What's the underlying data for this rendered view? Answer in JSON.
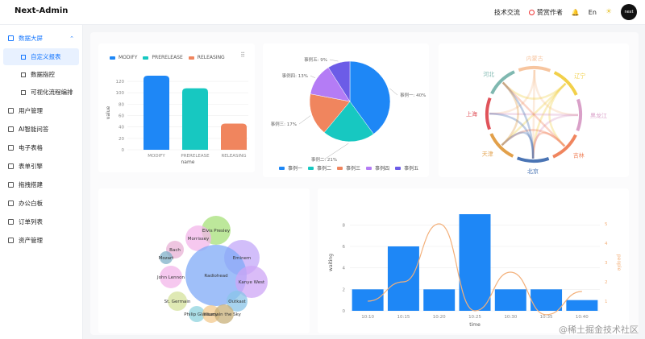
{
  "app": {
    "brand": "Next-Admin"
  },
  "topbar": {
    "tech_exchange": "技术交流",
    "appreciate": "赞赏作者",
    "lang": "En",
    "avatar_text": "next"
  },
  "sidebar": {
    "items": [
      {
        "label": "数据大屏",
        "icon": "monitor-icon",
        "open": true
      },
      {
        "label": "用户管理",
        "icon": "user-icon"
      },
      {
        "label": "AI智能问答",
        "icon": "ai-icon"
      },
      {
        "label": "电子表格",
        "icon": "table-icon"
      },
      {
        "label": "表单引擎",
        "icon": "form-icon"
      },
      {
        "label": "拖拽搭建",
        "icon": "drag-icon"
      },
      {
        "label": "办公白板",
        "icon": "whiteboard-icon"
      },
      {
        "label": "订单列表",
        "icon": "list-icon"
      },
      {
        "label": "资产管理",
        "icon": "asset-icon"
      }
    ],
    "sub_items": [
      {
        "label": "自定义报表",
        "icon": "report-icon",
        "active": true
      },
      {
        "label": "数据指控",
        "icon": "data-icon"
      },
      {
        "label": "可视化流程编排",
        "icon": "flow-icon"
      }
    ]
  },
  "watermark": "@稀土掘金技术社区",
  "chart_data": [
    {
      "type": "bar",
      "categories": [
        "MODIFY",
        "PRERELEASE",
        "RELEASING"
      ],
      "series": [
        {
          "name": "MODIFY",
          "values": [
            130,
            null,
            null
          ],
          "color": "#1e87f6"
        },
        {
          "name": "PRERELEASE",
          "values": [
            null,
            108,
            null
          ],
          "color": "#17c8c1"
        },
        {
          "name": "RELEASING",
          "values": [
            null,
            null,
            46
          ],
          "color": "#f0855e"
        }
      ],
      "xlabel": "name",
      "ylabel": "value",
      "y_ticks": [
        "0",
        "20",
        "40",
        "60",
        "80",
        "100",
        "120"
      ],
      "ylim": [
        0,
        130
      ],
      "legend": "top-left"
    },
    {
      "type": "pie",
      "slices": [
        {
          "name": "事例一",
          "value": 40,
          "label": "事例一: 40%",
          "color": "#1e87f6"
        },
        {
          "name": "事例二",
          "value": 21,
          "label": "事例二: 21%",
          "color": "#17c8c1"
        },
        {
          "name": "事例三",
          "value": 17,
          "label": "事例三: 17%",
          "color": "#f0855e"
        },
        {
          "name": "事例四",
          "value": 13,
          "label": "事例四: 13%",
          "color": "#b47cf5"
        },
        {
          "name": "事例五",
          "value": 9,
          "label": "事例五: 9%",
          "color": "#6c5ce7"
        }
      ],
      "legend": "bottom"
    },
    {
      "type": "chord",
      "nodes": [
        {
          "name": "内蒙古",
          "color": "#f7c59f"
        },
        {
          "name": "辽宁",
          "color": "#f2d04a"
        },
        {
          "name": "黑龙江",
          "color": "#d9a0c8"
        },
        {
          "name": "吉林",
          "color": "#f0855e"
        },
        {
          "name": "北京",
          "color": "#4a74b4"
        },
        {
          "name": "天津",
          "color": "#e2a04a"
        },
        {
          "name": "上海",
          "color": "#e0535a"
        },
        {
          "name": "河北",
          "color": "#7fb8b0"
        }
      ]
    },
    {
      "type": "bubble",
      "items": [
        "Elvis Presley",
        "Morrissey",
        "Bach",
        "Mozart",
        "Eminem",
        "John Lennon",
        "Radiohead",
        "Kanye West",
        "St. Germain",
        "Outkast",
        "Philip Glass",
        "Yiruma",
        "Lucy in the Sky"
      ]
    },
    {
      "type": "bar+line",
      "categories": [
        "10:10",
        "10:15",
        "10:20",
        "10:25",
        "10:30",
        "10:35",
        "10:40"
      ],
      "series": [
        {
          "name": "waiting",
          "type": "bar",
          "values": [
            2,
            6,
            2,
            9,
            2,
            2,
            1
          ],
          "color": "#1e87f6"
        },
        {
          "name": "people",
          "type": "line",
          "values": [
            1,
            2,
            5,
            0.5,
            2.5,
            0.3,
            1.5
          ],
          "color": "#f3b07a"
        }
      ],
      "xlabel": "time",
      "ylabel_left": "waiting",
      "ylabel_right": "people",
      "left_ticks": [
        "0",
        "2",
        "4",
        "6",
        "8"
      ],
      "right_ticks": [
        "1",
        "2",
        "3",
        "4",
        "5"
      ],
      "ylim_left": [
        0,
        9
      ],
      "ylim_right": [
        0.5,
        5.5
      ]
    }
  ]
}
